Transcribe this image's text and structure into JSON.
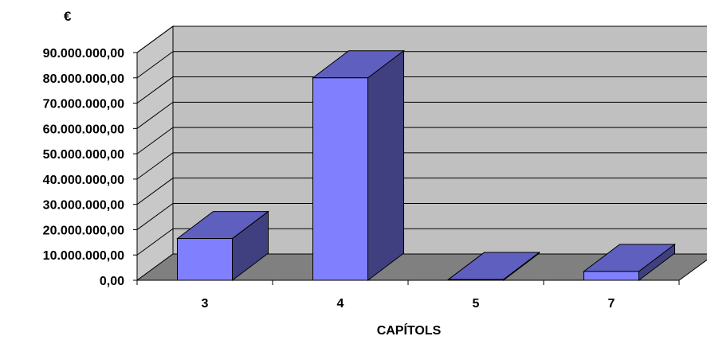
{
  "chart_data": {
    "type": "bar",
    "title": "",
    "ylabel": "€",
    "xlabel": "CAPÍTOLS",
    "categories": [
      "3",
      "4",
      "5",
      "7"
    ],
    "values": [
      16500000,
      80000000,
      300000,
      3500000
    ],
    "ylim": [
      0,
      90000000
    ],
    "yticks": [
      "0,00",
      "10.000.000,00",
      "20.000.000,00",
      "30.000.000,00",
      "40.000.000,00",
      "50.000.000,00",
      "60.000.000,00",
      "70.000.000,00",
      "80.000.000,00",
      "90.000.000,00"
    ],
    "grid": true,
    "three_d": true,
    "colors": {
      "bar_front": "#8080ff",
      "bar_top": "#5f5fc0",
      "bar_side": "#404080",
      "back_wall": "#c0c0c0",
      "side_wall": "#c8c8c8",
      "floor": "#808080"
    }
  }
}
